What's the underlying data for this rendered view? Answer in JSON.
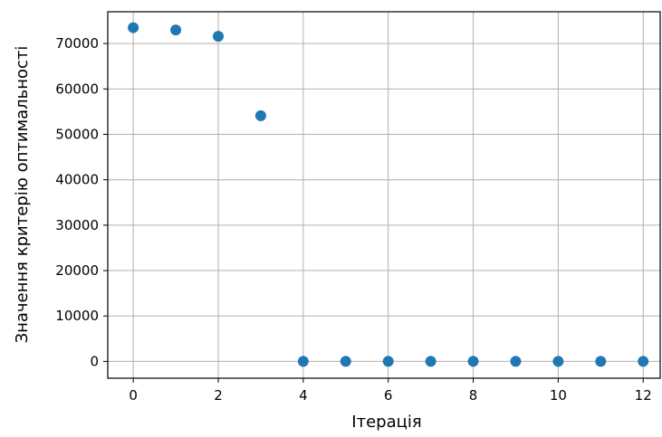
{
  "chart_data": {
    "type": "scatter",
    "title": "",
    "xlabel": "Ітерація",
    "ylabel": "Значення критерію оптимальності",
    "xlim": [
      -0.6,
      12.4
    ],
    "ylim": [
      -3700,
      77000
    ],
    "xticks": [
      "0",
      "2",
      "4",
      "6",
      "8",
      "10",
      "12"
    ],
    "yticks": [
      "0",
      "10000",
      "20000",
      "30000",
      "40000",
      "50000",
      "60000",
      "70000"
    ],
    "grid": true,
    "legend": "none",
    "marker_color": "#1f77b4",
    "series": [
      {
        "x": [
          0,
          1,
          2,
          3,
          4,
          5,
          6,
          7,
          8,
          9,
          10,
          11,
          12
        ],
        "y": [
          73500,
          73000,
          71600,
          54100,
          0,
          0,
          0,
          0,
          0,
          0,
          0,
          0,
          0
        ]
      }
    ]
  }
}
